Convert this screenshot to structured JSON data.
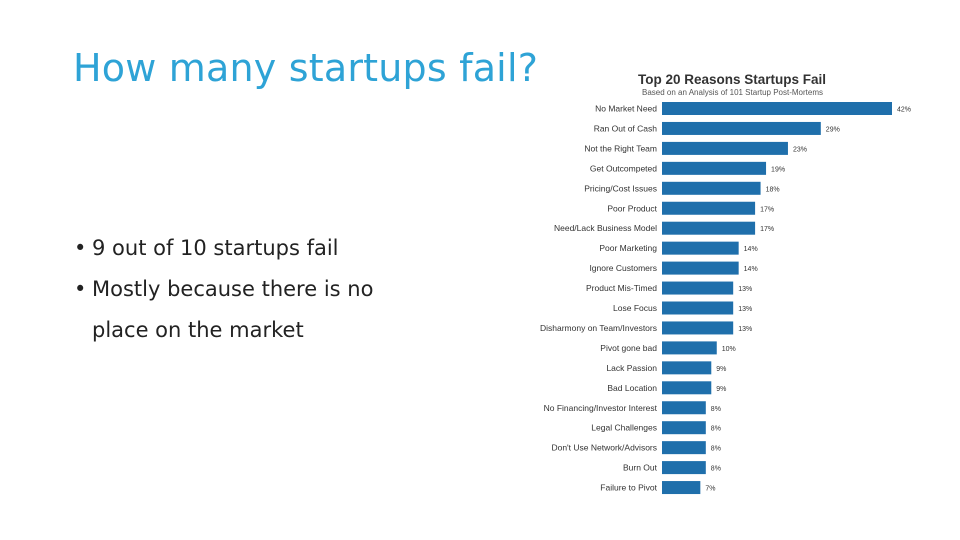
{
  "slide": {
    "title": "How many startups fail?",
    "bullets": [
      "9 out of 10 startups fail",
      "Mostly because there is no place on the market"
    ]
  },
  "chart_data": {
    "type": "bar",
    "orientation": "horizontal",
    "title": "Top 20 Reasons Startups Fail",
    "subtitle": "Based on an Analysis of 101 Startup Post-Mortems",
    "color": "#1f6fab",
    "categories": [
      "No Market Need",
      "Ran Out of Cash",
      "Not the Right Team",
      "Get Outcompeted",
      "Pricing/Cost Issues",
      "Poor Product",
      "Need/Lack Business Model",
      "Poor Marketing",
      "Ignore Customers",
      "Product Mis-Timed",
      "Lose Focus",
      "Disharmony on Team/Investors",
      "Pivot gone bad",
      "Lack Passion",
      "Bad Location",
      "No Financing/Investor Interest",
      "Legal Challenges",
      "Don't Use Network/Advisors",
      "Burn Out",
      "Failure to Pivot"
    ],
    "values": [
      42,
      29,
      23,
      19,
      18,
      17,
      17,
      14,
      14,
      13,
      13,
      13,
      10,
      9,
      9,
      8,
      8,
      8,
      8,
      7
    ],
    "value_labels": [
      "42%",
      "29%",
      "23%",
      "19%",
      "18%",
      "17%",
      "17%",
      "14%",
      "14%",
      "13%",
      "13%",
      "13%",
      "10%",
      "9%",
      "9%",
      "8%",
      "8%",
      "8%",
      "8%",
      "7%"
    ],
    "xlim": [
      0,
      42
    ]
  }
}
